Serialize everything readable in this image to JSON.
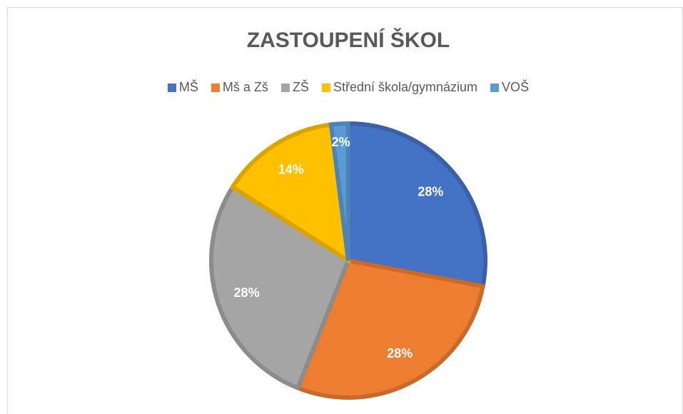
{
  "chart_data": {
    "type": "pie",
    "title": "ZASTOUPENÍ ŠKOL",
    "categories": [
      "MŠ",
      "Mš a Zš",
      "ZŠ",
      "Střední škola/gymnázium",
      "VOŠ"
    ],
    "values": [
      28,
      28,
      28,
      14,
      2
    ],
    "value_labels": [
      "28%",
      "28%",
      "28%",
      "14%",
      "2%"
    ],
    "colors": [
      "#4472c4",
      "#ed7d31",
      "#a5a5a5",
      "#ffc000",
      "#5b9bd5"
    ],
    "legend": "top"
  }
}
